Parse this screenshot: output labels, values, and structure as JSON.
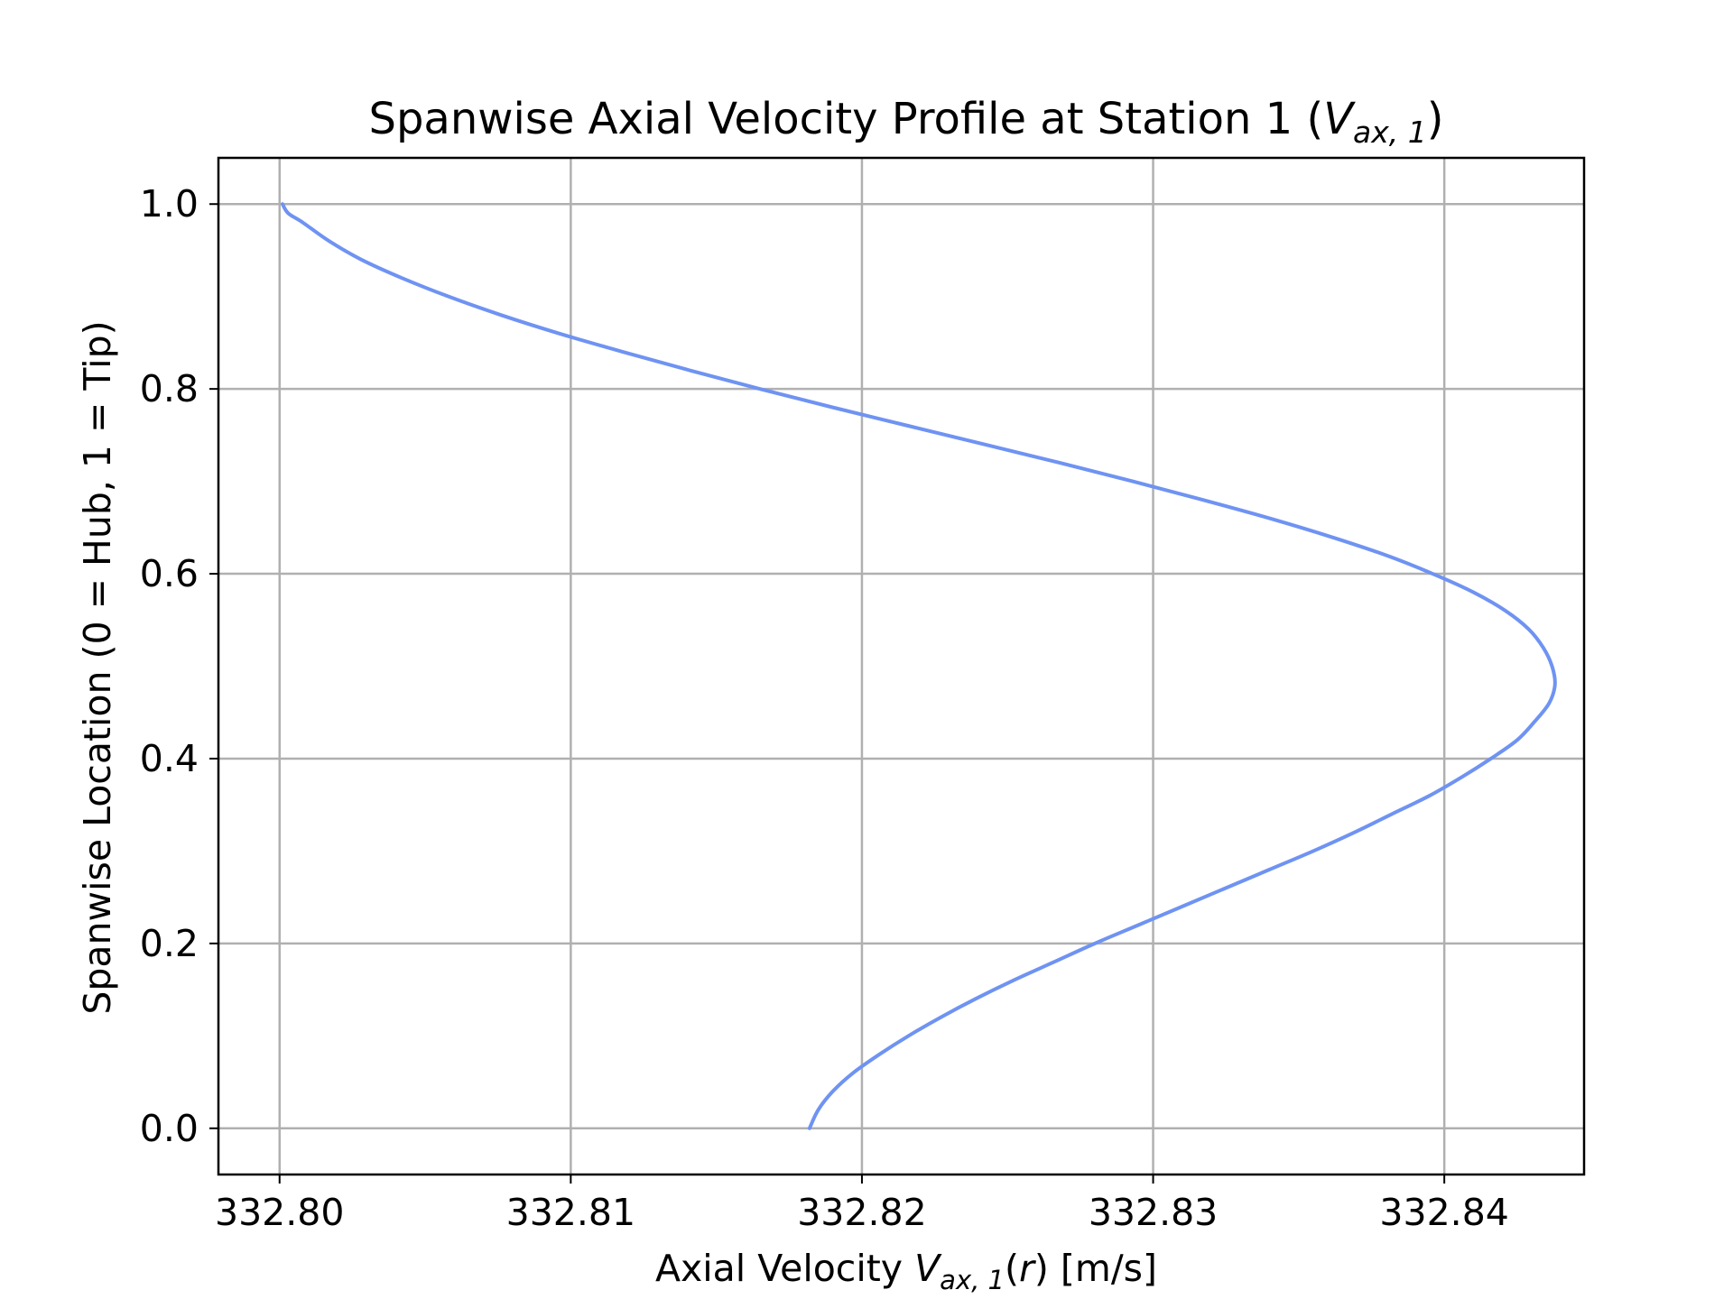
{
  "chart_data": {
    "type": "line",
    "title": {
      "main": "Spanwise Axial Velocity Profile at Station 1 (",
      "var": "V",
      "sub": "ax, 1",
      "end": ")"
    },
    "xlabel": {
      "main": "Axial Velocity ",
      "var": "V",
      "sub": "ax, 1",
      "mid": "(",
      "arg": "r",
      "end": ") [m/s]"
    },
    "ylabel": "Spanwise Location (0 = Hub, 1 = Tip)",
    "xlim": [
      332.7979,
      332.8448
    ],
    "ylim": [
      -0.05,
      1.05
    ],
    "xticks": [
      332.8,
      332.81,
      332.82,
      332.83,
      332.84
    ],
    "xtick_labels": [
      "332.80",
      "332.81",
      "332.82",
      "332.83",
      "332.84"
    ],
    "yticks": [
      0.0,
      0.2,
      0.4,
      0.6,
      0.8,
      1.0
    ],
    "ytick_labels": [
      "0.0",
      "0.2",
      "0.4",
      "0.6",
      "0.8",
      "1.0"
    ],
    "grid": true,
    "line_color": "#6f93f2",
    "series": [
      {
        "x": [
          332.8182,
          332.8185,
          332.819,
          332.8197,
          332.8206,
          332.8216,
          332.8227,
          332.8239,
          332.8252,
          332.8266,
          332.828,
          332.8295,
          332.831,
          332.8325,
          332.834,
          332.8355,
          332.8369,
          332.8382,
          332.8395,
          332.8406,
          332.8416,
          332.8425,
          332.8431,
          332.8436,
          332.8438,
          332.8437,
          332.8434,
          332.8429,
          332.8421,
          332.841,
          332.8396,
          332.838,
          332.8361,
          332.834,
          332.8317,
          332.8293,
          332.8268,
          332.8242,
          332.8216,
          332.819,
          332.8165,
          332.8141,
          332.8118,
          332.8096,
          332.8076,
          332.8058,
          332.8042,
          332.8028,
          332.8017,
          332.8008,
          332.8003,
          332.8001
        ],
        "y": [
          0.0,
          0.02,
          0.04,
          0.06,
          0.08,
          0.1,
          0.12,
          0.14,
          0.16,
          0.18,
          0.2,
          0.22,
          0.24,
          0.26,
          0.28,
          0.3,
          0.32,
          0.34,
          0.36,
          0.38,
          0.4,
          0.42,
          0.44,
          0.46,
          0.48,
          0.5,
          0.52,
          0.54,
          0.56,
          0.58,
          0.6,
          0.62,
          0.64,
          0.66,
          0.68,
          0.7,
          0.72,
          0.74,
          0.76,
          0.78,
          0.8,
          0.82,
          0.84,
          0.86,
          0.88,
          0.9,
          0.92,
          0.94,
          0.96,
          0.98,
          0.99,
          1.0
        ]
      }
    ]
  }
}
